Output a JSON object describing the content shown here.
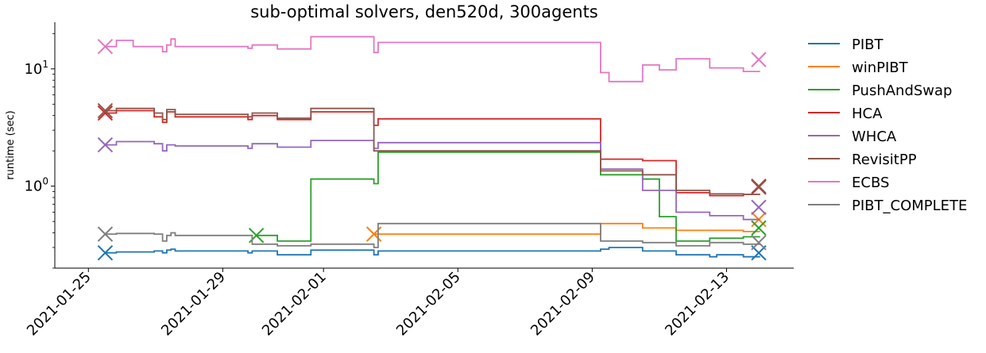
{
  "chart_data": {
    "type": "line",
    "title": "sub-optimal solvers, den520d, 300agents",
    "xlabel": "",
    "ylabel": "runtime (sec)",
    "yscale": "log",
    "ylim": [
      0.2,
      25
    ],
    "xlim": [
      "2021-01-24",
      "2021-02-15"
    ],
    "x_ticks": [
      "2021-01-25",
      "2021-01-29",
      "2021-02-01",
      "2021-02-05",
      "2021-02-09",
      "2021-02-13"
    ],
    "y_ticks": [
      {
        "value": 1,
        "label": "10^0"
      },
      {
        "value": 10,
        "label": "10^1"
      }
    ],
    "legend_position": "outside-right",
    "grid": false,
    "series": [
      {
        "name": "PIBT",
        "color": "#1f77b4",
        "points": [
          [
            "2021-01-25T12:00",
            0.27
          ],
          [
            "2021-01-25T20:00",
            0.275
          ],
          [
            "2021-01-26T23:00",
            0.28
          ],
          [
            "2021-01-27T05:00",
            0.27
          ],
          [
            "2021-01-27T08:00",
            0.285
          ],
          [
            "2021-01-27T11:00",
            0.29
          ],
          [
            "2021-01-27T14:00",
            0.28
          ],
          [
            "2021-01-29T18:00",
            0.27
          ],
          [
            "2021-01-29T21:00",
            0.28
          ],
          [
            "2021-01-30T15:00",
            0.26
          ],
          [
            "2021-01-31T15:00",
            0.285
          ],
          [
            "2021-02-02T12:00",
            0.26
          ],
          [
            "2021-02-02T15:00",
            0.28
          ],
          [
            "2021-02-09T06:00",
            0.29
          ],
          [
            "2021-02-09T12:00",
            0.3
          ],
          [
            "2021-02-10T12:00",
            0.28
          ],
          [
            "2021-02-11T12:00",
            0.26
          ],
          [
            "2021-02-12T12:00",
            0.25
          ],
          [
            "2021-02-12T17:00",
            0.26
          ],
          [
            "2021-02-13T12:00",
            0.25
          ]
        ],
        "end_marker": 0.27
      },
      {
        "name": "winPIBT",
        "color": "#ff7f0e",
        "points": [
          [
            "2021-02-02T12:00",
            0.39
          ],
          [
            "2021-02-09T06:00",
            0.48
          ],
          [
            "2021-02-10T12:00",
            0.44
          ],
          [
            "2021-02-11T12:00",
            0.42
          ],
          [
            "2021-02-13T12:00",
            0.41
          ]
        ],
        "start_marker": 0.39,
        "end_marker": 0.52
      },
      {
        "name": "PushAndSwap",
        "color": "#2ca02c",
        "points": [
          [
            "2021-01-30T00:00",
            0.38
          ],
          [
            "2021-01-30T15:00",
            0.34
          ],
          [
            "2021-01-31T15:00",
            1.15
          ],
          [
            "2021-02-02T12:00",
            1.05
          ],
          [
            "2021-02-02T15:00",
            1.95
          ],
          [
            "2021-02-09T06:00",
            1.25
          ],
          [
            "2021-02-10T12:00",
            1.15
          ],
          [
            "2021-02-11T00:00",
            0.55
          ],
          [
            "2021-02-11T12:00",
            0.34
          ],
          [
            "2021-02-12T12:00",
            0.36
          ],
          [
            "2021-02-13T12:00",
            0.37
          ]
        ],
        "start_marker": 0.38,
        "end_marker": 0.44
      },
      {
        "name": "HCA",
        "color": "#d62728",
        "points": [
          [
            "2021-01-25T12:00",
            4.2
          ],
          [
            "2021-01-25T20:00",
            4.4
          ],
          [
            "2021-01-26T23:00",
            3.9
          ],
          [
            "2021-01-27T05:00",
            3.5
          ],
          [
            "2021-01-27T08:00",
            4.3
          ],
          [
            "2021-01-27T14:00",
            3.9
          ],
          [
            "2021-01-29T18:00",
            3.7
          ],
          [
            "2021-01-29T21:00",
            4.0
          ],
          [
            "2021-01-30T15:00",
            3.7
          ],
          [
            "2021-01-31T15:00",
            4.3
          ],
          [
            "2021-02-02T12:00",
            3.3
          ],
          [
            "2021-02-02T15:00",
            3.75
          ],
          [
            "2021-02-09T06:00",
            1.7
          ],
          [
            "2021-02-10T12:00",
            1.65
          ],
          [
            "2021-02-11T12:00",
            0.88
          ],
          [
            "2021-02-12T12:00",
            0.83
          ],
          [
            "2021-02-13T12:00",
            0.85
          ]
        ],
        "end_marker": 0.98
      },
      {
        "name": "WHCA",
        "color": "#9467bd",
        "points": [
          [
            "2021-01-25T12:00",
            2.25
          ],
          [
            "2021-01-25T20:00",
            2.4
          ],
          [
            "2021-01-26T23:00",
            2.3
          ],
          [
            "2021-01-27T05:00",
            2.0
          ],
          [
            "2021-01-27T08:00",
            2.25
          ],
          [
            "2021-01-27T14:00",
            2.2
          ],
          [
            "2021-01-29T18:00",
            2.1
          ],
          [
            "2021-01-29T21:00",
            2.3
          ],
          [
            "2021-01-30T15:00",
            2.15
          ],
          [
            "2021-01-31T15:00",
            2.45
          ],
          [
            "2021-02-02T12:00",
            2.1
          ],
          [
            "2021-02-02T15:00",
            2.35
          ],
          [
            "2021-02-09T06:00",
            1.4
          ],
          [
            "2021-02-10T12:00",
            0.92
          ],
          [
            "2021-02-11T12:00",
            0.6
          ],
          [
            "2021-02-12T12:00",
            0.56
          ],
          [
            "2021-02-13T12:00",
            0.52
          ]
        ],
        "end_marker": 0.66
      },
      {
        "name": "RevisitPP",
        "color": "#8c564b",
        "points": [
          [
            "2021-01-25T12:00",
            4.4
          ],
          [
            "2021-01-25T20:00",
            4.6
          ],
          [
            "2021-01-26T23:00",
            4.2
          ],
          [
            "2021-01-27T05:00",
            3.7
          ],
          [
            "2021-01-27T08:00",
            4.5
          ],
          [
            "2021-01-27T14:00",
            4.1
          ],
          [
            "2021-01-29T18:00",
            3.9
          ],
          [
            "2021-01-29T21:00",
            4.2
          ],
          [
            "2021-01-30T15:00",
            3.8
          ],
          [
            "2021-01-31T15:00",
            4.6
          ],
          [
            "2021-02-02T12:00",
            2.0
          ],
          [
            "2021-02-09T06:00",
            1.35
          ],
          [
            "2021-02-10T12:00",
            1.25
          ],
          [
            "2021-02-11T12:00",
            0.92
          ],
          [
            "2021-02-12T12:00",
            0.86
          ],
          [
            "2021-02-13T12:00",
            0.85
          ]
        ],
        "end_marker": 1.0
      },
      {
        "name": "ECBS",
        "color": "#e377c2",
        "points": [
          [
            "2021-01-25T12:00",
            15.5
          ],
          [
            "2021-01-25T20:00",
            17.5
          ],
          [
            "2021-01-26T08:00",
            15.5
          ],
          [
            "2021-01-27T05:00",
            14.0
          ],
          [
            "2021-01-27T08:00",
            16.0
          ],
          [
            "2021-01-27T11:00",
            18.0
          ],
          [
            "2021-01-27T14:00",
            15.5
          ],
          [
            "2021-01-29T18:00",
            15.0
          ],
          [
            "2021-01-29T21:00",
            16.0
          ],
          [
            "2021-01-30T15:00",
            14.8
          ],
          [
            "2021-01-31T15:00",
            18.8
          ],
          [
            "2021-02-02T12:00",
            13.8
          ],
          [
            "2021-02-02T15:00",
            16.8
          ],
          [
            "2021-02-09T06:00",
            9.3
          ],
          [
            "2021-02-09T12:00",
            7.8
          ],
          [
            "2021-02-10T12:00",
            10.8
          ],
          [
            "2021-02-11T00:00",
            9.8
          ],
          [
            "2021-02-11T12:00",
            12.2
          ],
          [
            "2021-02-12T12:00",
            10.2
          ],
          [
            "2021-02-13T12:00",
            9.5
          ]
        ],
        "end_marker": 12.0
      },
      {
        "name": "PIBT_COMPLETE",
        "color": "#7f7f7f",
        "points": [
          [
            "2021-01-25T12:00",
            0.39
          ],
          [
            "2021-01-25T20:00",
            0.395
          ],
          [
            "2021-01-26T23:00",
            0.39
          ],
          [
            "2021-01-27T05:00",
            0.34
          ],
          [
            "2021-01-27T08:00",
            0.38
          ],
          [
            "2021-01-27T11:00",
            0.4
          ],
          [
            "2021-01-27T14:00",
            0.38
          ],
          [
            "2021-01-29T18:00",
            0.38
          ],
          [
            "2021-01-29T21:00",
            0.32
          ],
          [
            "2021-01-30T15:00",
            0.31
          ],
          [
            "2021-01-31T15:00",
            0.32
          ],
          [
            "2021-02-02T12:00",
            0.3
          ],
          [
            "2021-02-02T15:00",
            0.48
          ],
          [
            "2021-02-09T06:00",
            0.34
          ],
          [
            "2021-02-10T12:00",
            0.33
          ],
          [
            "2021-02-11T12:00",
            0.31
          ],
          [
            "2021-02-12T12:00",
            0.33
          ],
          [
            "2021-02-13T12:00",
            0.32
          ]
        ],
        "end_marker": 0.33
      }
    ]
  }
}
